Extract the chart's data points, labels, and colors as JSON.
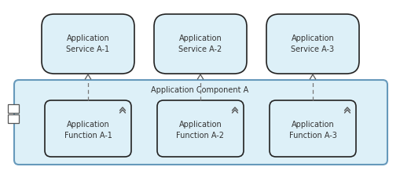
{
  "bg_color": "#ffffff",
  "component_bg": "#ddf0f8",
  "component_border": "#6699bb",
  "service_bg": "#ddf0f8",
  "service_border": "#222222",
  "function_bg": "#ddf0f8",
  "function_border": "#222222",
  "component_label": "Application Component A",
  "services": [
    "Application\nService A-1",
    "Application\nService A-2",
    "Application\nService A-3"
  ],
  "functions": [
    "Application\nFunction A-1",
    "Application\nFunction A-2",
    "Application\nFunction A-3"
  ],
  "fig_w": 5.09,
  "fig_h": 2.22,
  "dpi": 100,
  "font_size": 7.0,
  "label_font_size": 7.0
}
